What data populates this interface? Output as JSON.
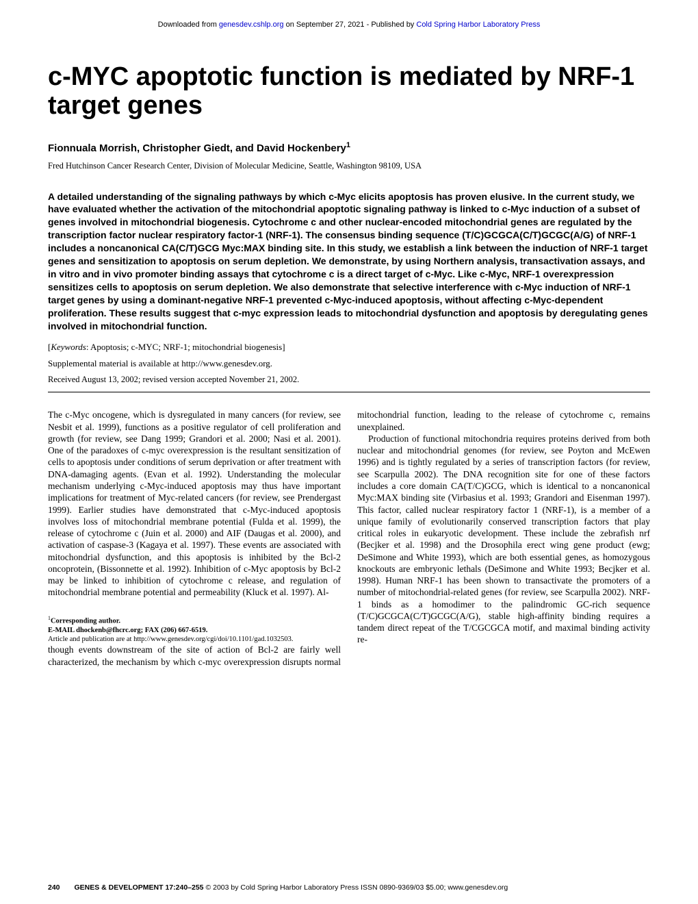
{
  "header": {
    "download_prefix": "Downloaded from ",
    "download_link": "genesdev.cshlp.org",
    "download_mid": " on September 27, 2021 - Published by ",
    "download_publisher": "Cold Spring Harbor Laboratory Press"
  },
  "title": "c-MYC apoptotic function is mediated by NRF-1 target genes",
  "authors": "Fionnuala Morrish, Christopher Giedt, and David Hockenbery",
  "author_sup": "1",
  "affiliation": "Fred Hutchinson Cancer Research Center, Division of Molecular Medicine, Seattle, Washington 98109, USA",
  "abstract": "A detailed understanding of the signaling pathways by which c-Myc elicits apoptosis has proven elusive. In the current study, we have evaluated whether the activation of the mitochondrial apoptotic signaling pathway is linked to c-Myc induction of a subset of genes involved in mitochondrial biogenesis. Cytochrome c and other nuclear-encoded mitochondrial genes are regulated by the transcription factor nuclear respiratory factor-1 (NRF-1). The consensus binding sequence (T/C)GCGCA(C/T)GCGC(A/G) of NRF-1 includes a noncanonical CA(C/T)GCG Myc:MAX binding site. In this study, we establish a link between the induction of NRF-1 target genes and sensitization to apoptosis on serum depletion. We demonstrate, by using Northern analysis, transactivation assays, and in vitro and in vivo promoter binding assays that cytochrome c is a direct target of c-Myc. Like c-Myc, NRF-1 overexpression sensitizes cells to apoptosis on serum depletion. We also demonstrate that selective interference with c-Myc induction of NRF-1 target genes by using a dominant-negative NRF-1 prevented c-Myc-induced apoptosis, without affecting c-Myc-dependent proliferation. These results suggest that c-myc expression leads to mitochondrial dysfunction and apoptosis by deregulating genes involved in mitochondrial function.",
  "keywords_label": "Keywords",
  "keywords_text": ": Apoptosis; c-MYC; NRF-1; mitochondrial biogenesis]",
  "supplemental": "Supplemental material is available at http://www.genesdev.org.",
  "received": "Received August 13, 2002; revised version accepted November 21, 2002.",
  "body": {
    "p1": "The c-Myc oncogene, which is dysregulated in many cancers (for review, see Nesbit et al. 1999), functions as a positive regulator of cell proliferation and growth (for review, see Dang 1999; Grandori et al. 2000; Nasi et al. 2001). One of the paradoxes of c-myc overexpression is the resultant sensitization of cells to apoptosis under conditions of serum deprivation or after treatment with DNA-damaging agents. (Evan et al. 1992). Understanding the molecular mechanism underlying c-Myc-induced apoptosis may thus have important implications for treatment of Myc-related cancers (for review, see Prendergast 1999). Earlier studies have demonstrated that c-Myc-induced apoptosis involves loss of mitochondrial membrane potential (Fulda et al. 1999), the release of cytochrome c (Juin et al. 2000) and AIF (Daugas et al. 2000), and activation of caspase-3 (Kagaya et al. 1997). These events are associated with mitochondrial dysfunction, and this apoptosis is inhibited by the Bcl-2 oncoprotein, (Bissonnette et al. 1992). Inhibition of c-Myc apoptosis by Bcl-2 may be linked to inhibition of cytochrome c release, and regulation of mitochondrial membrane potential and permeability (Kluck et al. 1997). Al-",
    "p2": "though events downstream of the site of action of Bcl-2 are fairly well characterized, the mechanism by which c-myc overexpression disrupts normal mitochondrial function, leading to the release of cytochrome c, remains unexplained.",
    "p3": "Production of functional mitochondria requires proteins derived from both nuclear and mitochondrial genomes (for review, see Poyton and McEwen 1996) and is tightly regulated by a series of transcription factors (for review, see Scarpulla 2002). The DNA recognition site for one of these factors includes a core domain CA(T/C)GCG, which is identical to a noncanonical Myc:MAX binding site (Virbasius et al. 1993; Grandori and Eisenman 1997). This factor, called nuclear respiratory factor 1 (NRF-1), is a member of a unique family of evolutionarily conserved transcription factors that play critical roles in eukaryotic development. These include the zebrafish nrf (Becjker et al. 1998) and the Drosophila erect wing gene product (ewg; DeSimone and White 1993), which are both essential genes, as homozygous knockouts are embryonic lethals (DeSimone and White 1993; Becjker et al. 1998). Human NRF-1 has been shown to transactivate the promoters of a number of mitochondrial-related genes (for review, see Scarpulla 2002). NRF-1 binds as a homodimer to the palindromic GC-rich sequence (T/C)GCGCA(C/T)GCGC(A/G), stable high-affinity binding requires a tandem direct repeat of the T/CGCGCA motif, and maximal binding activity re-"
  },
  "corresponding": {
    "sup": "1",
    "label": "Corresponding author.",
    "email_line": "E-MAIL dhockenb@fhcrc.org; FAX (206) 667-6519.",
    "article_line": "Article and publication are at http://www.genesdev.org/cgi/doi/10.1101/gad.1032503."
  },
  "footer": {
    "pagenum": "240",
    "journal": "GENES & DEVELOPMENT 17:240–255 ",
    "rest": "© 2003 by Cold Spring Harbor Laboratory Press ISSN 0890-9369/03 $5.00; www.genesdev.org"
  }
}
